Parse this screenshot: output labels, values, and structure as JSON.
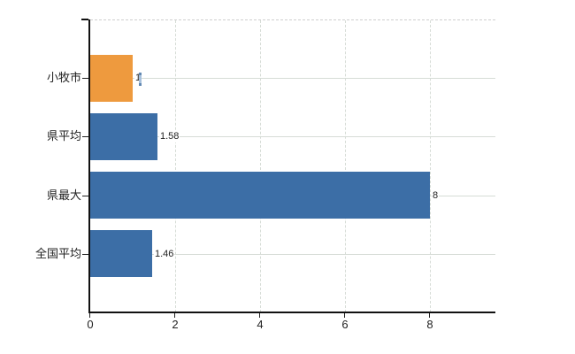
{
  "chart_data": {
    "type": "bar",
    "orientation": "horizontal",
    "title": "",
    "categories": [
      "小牧市",
      "県平均",
      "県最大",
      "全国平均"
    ],
    "values": [
      1,
      1.58,
      8,
      1.46
    ],
    "value_labels": [
      "1",
      "1.58",
      "8",
      "1.46"
    ],
    "bar_colors": [
      "#ee9a3e",
      "#3c6ea6",
      "#3c6ea6",
      "#3c6ea6"
    ],
    "x_ticks": [
      "0",
      "2",
      "4",
      "6",
      "8"
    ],
    "x_tick_values": [
      0,
      2,
      4,
      6,
      8
    ],
    "xlim": [
      0,
      9.55
    ],
    "grid": {
      "vertical_style": "dashed",
      "horizontal_style": "solid",
      "top_border_style": "dashed"
    },
    "legend": "none"
  },
  "colors": {
    "background": "#ffffff",
    "axis": "#111111",
    "grid": "#d6dcd6",
    "top_border": "#cfcfcf",
    "text": "#222222",
    "bar_highlight": "#ee9a3e",
    "bar_default": "#3c6ea6",
    "cursor": "#a9c2dd"
  }
}
